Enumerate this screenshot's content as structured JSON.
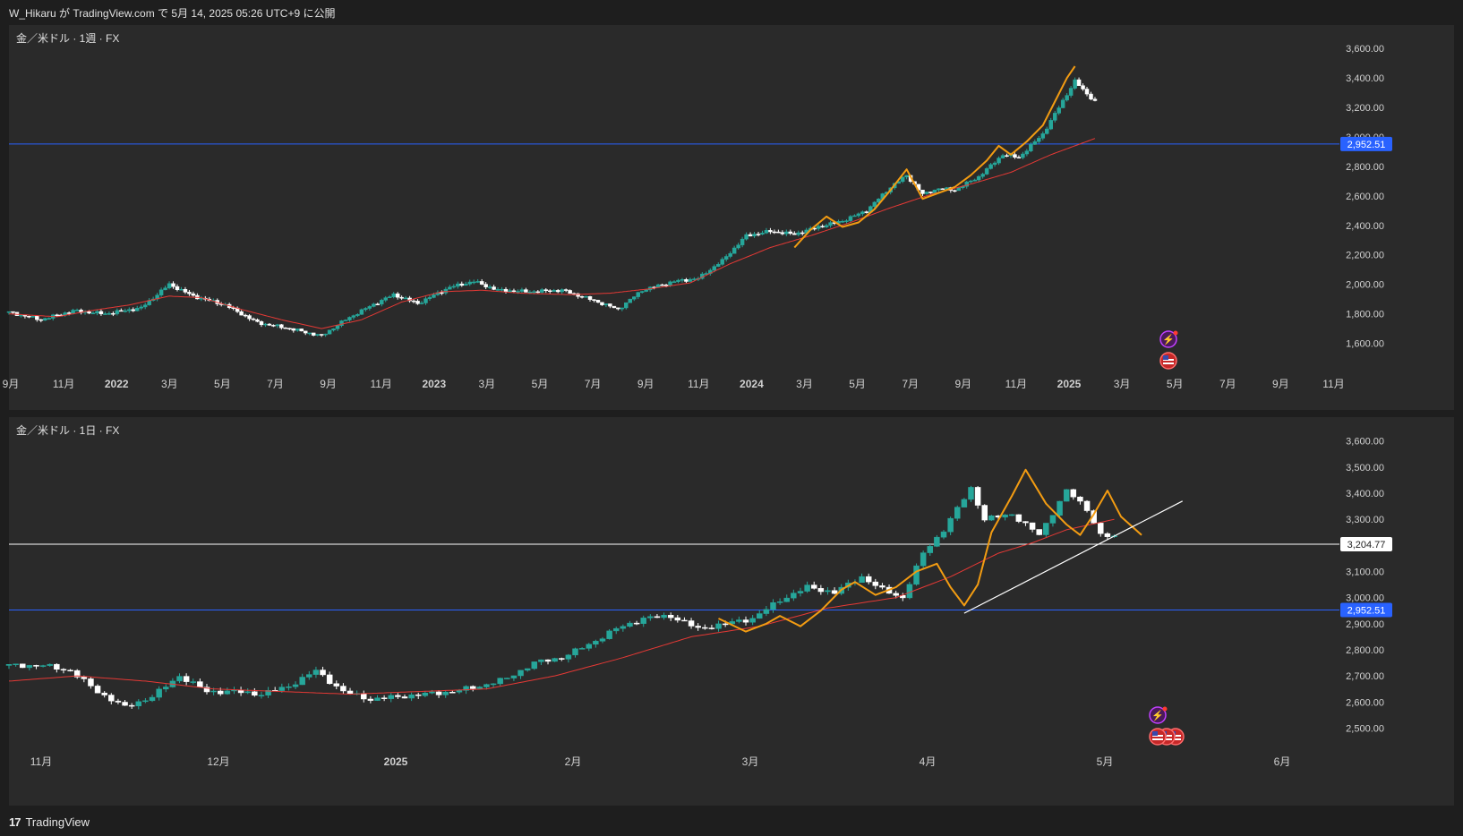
{
  "header": {
    "text": "W_Hikaru が TradingView.com で 5月 14, 2025 05:26 UTC+9 に公開"
  },
  "footer": {
    "logo": "17",
    "brand": "TradingView"
  },
  "colors": {
    "bg": "#2a2a2a",
    "up": "#26a69a",
    "down": "#ffffff",
    "ma": "#e53935",
    "pattern": "#f39c12",
    "hline_blue": "#2962ff",
    "hline_white": "#ffffff",
    "trend": "#ffffff"
  },
  "icons": [
    "lightning-icon",
    "us-flag-icon"
  ],
  "chart_data": [
    {
      "type": "candlestick",
      "title": "金／米ドル · 1週 · FX",
      "y_ticks": [
        "3,600.00",
        "3,400.00",
        "3,200.00",
        "3,000.00",
        "2,800.00",
        "2,600.00",
        "2,400.00",
        "2,200.00",
        "2,000.00",
        "1,800.00",
        "1,600.00"
      ],
      "ylim": [
        1500,
        3650
      ],
      "x_ticks": [
        "9月",
        "11月",
        "2022",
        "3月",
        "5月",
        "7月",
        "9月",
        "11月",
        "2023",
        "3月",
        "5月",
        "7月",
        "9月",
        "11月",
        "2024",
        "3月",
        "5月",
        "7月",
        "9月",
        "11月",
        "2025",
        "3月",
        "5月",
        "7月",
        "9月",
        "11月"
      ],
      "price_path": [
        [
          0,
          1810
        ],
        [
          8,
          1760
        ],
        [
          16,
          1820
        ],
        [
          24,
          1800
        ],
        [
          33,
          1840
        ],
        [
          40,
          2000
        ],
        [
          46,
          1920
        ],
        [
          54,
          1860
        ],
        [
          62,
          1740
        ],
        [
          70,
          1700
        ],
        [
          78,
          1650
        ],
        [
          84,
          1760
        ],
        [
          90,
          1850
        ],
        [
          96,
          1930
        ],
        [
          102,
          1870
        ],
        [
          110,
          1980
        ],
        [
          116,
          2020
        ],
        [
          122,
          1960
        ],
        [
          130,
          1950
        ],
        [
          138,
          1960
        ],
        [
          146,
          1890
        ],
        [
          152,
          1830
        ],
        [
          158,
          1960
        ],
        [
          166,
          2020
        ],
        [
          172,
          2040
        ],
        [
          178,
          2160
        ],
        [
          184,
          2330
        ],
        [
          190,
          2360
        ],
        [
          196,
          2340
        ],
        [
          202,
          2390
        ],
        [
          208,
          2430
        ],
        [
          214,
          2500
        ],
        [
          220,
          2660
        ],
        [
          224,
          2740
        ],
        [
          228,
          2610
        ],
        [
          232,
          2650
        ],
        [
          236,
          2640
        ],
        [
          242,
          2730
        ],
        [
          248,
          2880
        ],
        [
          252,
          2860
        ],
        [
          258,
          3020
        ],
        [
          262,
          3200
        ],
        [
          266,
          3380
        ],
        [
          268,
          3320
        ],
        [
          271,
          3240
        ]
      ],
      "ma_path": [
        [
          0,
          1800
        ],
        [
          12,
          1780
        ],
        [
          20,
          1820
        ],
        [
          30,
          1860
        ],
        [
          40,
          1920
        ],
        [
          48,
          1910
        ],
        [
          58,
          1830
        ],
        [
          68,
          1760
        ],
        [
          78,
          1700
        ],
        [
          88,
          1760
        ],
        [
          98,
          1880
        ],
        [
          108,
          1950
        ],
        [
          118,
          1960
        ],
        [
          128,
          1940
        ],
        [
          140,
          1930
        ],
        [
          150,
          1940
        ],
        [
          160,
          1970
        ],
        [
          170,
          2010
        ],
        [
          180,
          2140
        ],
        [
          190,
          2250
        ],
        [
          200,
          2330
        ],
        [
          210,
          2420
        ],
        [
          220,
          2520
        ],
        [
          230,
          2610
        ],
        [
          240,
          2680
        ],
        [
          250,
          2760
        ],
        [
          260,
          2880
        ],
        [
          271,
          2990
        ]
      ],
      "pattern_path": [
        [
          196,
          2250
        ],
        [
          200,
          2370
        ],
        [
          204,
          2460
        ],
        [
          208,
          2390
        ],
        [
          212,
          2420
        ],
        [
          216,
          2510
        ],
        [
          220,
          2640
        ],
        [
          224,
          2780
        ],
        [
          228,
          2580
        ],
        [
          232,
          2620
        ],
        [
          236,
          2660
        ],
        [
          240,
          2740
        ],
        [
          244,
          2840
        ],
        [
          247,
          2940
        ],
        [
          250,
          2880
        ],
        [
          254,
          2970
        ],
        [
          258,
          3080
        ],
        [
          261,
          3240
        ],
        [
          264,
          3400
        ],
        [
          266,
          3480
        ]
      ],
      "hline": {
        "value": 2952.51,
        "label": "2,952.51"
      },
      "x_range": [
        0,
        332
      ]
    },
    {
      "type": "candlestick",
      "title": "金／米ドル · 1日 · FX",
      "y_ticks": [
        "3,600.00",
        "3,500.00",
        "3,400.00",
        "3,300.00",
        "3,200.00",
        "3,100.00",
        "3,000.00",
        "2,900.00",
        "2,800.00",
        "2,700.00",
        "2,600.00",
        "2,500.00"
      ],
      "ylim": [
        2450,
        3630
      ],
      "x_ticks": [
        "11月",
        "12月",
        "2025",
        "2月",
        "3月",
        "4月",
        "5月",
        "6月"
      ],
      "price_path": [
        [
          0,
          2740
        ],
        [
          5,
          2740
        ],
        [
          9,
          2720
        ],
        [
          13,
          2640
        ],
        [
          17,
          2580
        ],
        [
          21,
          2620
        ],
        [
          25,
          2700
        ],
        [
          29,
          2640
        ],
        [
          33,
          2640
        ],
        [
          37,
          2630
        ],
        [
          41,
          2660
        ],
        [
          45,
          2720
        ],
        [
          49,
          2640
        ],
        [
          53,
          2610
        ],
        [
          57,
          2620
        ],
        [
          61,
          2630
        ],
        [
          65,
          2640
        ],
        [
          69,
          2660
        ],
        [
          73,
          2690
        ],
        [
          77,
          2750
        ],
        [
          81,
          2770
        ],
        [
          85,
          2820
        ],
        [
          89,
          2880
        ],
        [
          93,
          2920
        ],
        [
          97,
          2930
        ],
        [
          101,
          2880
        ],
        [
          105,
          2900
        ],
        [
          109,
          2920
        ],
        [
          113,
          2990
        ],
        [
          117,
          3040
        ],
        [
          121,
          3020
        ],
        [
          125,
          3080
        ],
        [
          128,
          3030
        ],
        [
          131,
          3000
        ],
        [
          134,
          3170
        ],
        [
          137,
          3260
        ],
        [
          141,
          3420
        ],
        [
          143,
          3300
        ],
        [
          147,
          3320
        ],
        [
          151,
          3240
        ],
        [
          155,
          3410
        ],
        [
          158,
          3340
        ],
        [
          160,
          3240
        ],
        [
          162,
          3230
        ]
      ],
      "ma_path": [
        [
          0,
          2680
        ],
        [
          10,
          2700
        ],
        [
          20,
          2680
        ],
        [
          30,
          2650
        ],
        [
          40,
          2640
        ],
        [
          50,
          2630
        ],
        [
          60,
          2640
        ],
        [
          70,
          2650
        ],
        [
          80,
          2700
        ],
        [
          90,
          2770
        ],
        [
          100,
          2850
        ],
        [
          110,
          2890
        ],
        [
          120,
          2960
        ],
        [
          130,
          3000
        ],
        [
          138,
          3080
        ],
        [
          145,
          3170
        ],
        [
          150,
          3210
        ],
        [
          155,
          3260
        ],
        [
          162,
          3300
        ]
      ],
      "pattern_path": [
        [
          104,
          2920
        ],
        [
          108,
          2870
        ],
        [
          111,
          2900
        ],
        [
          113,
          2930
        ],
        [
          116,
          2890
        ],
        [
          119,
          2950
        ],
        [
          122,
          3030
        ],
        [
          124,
          3060
        ],
        [
          127,
          3010
        ],
        [
          130,
          3040
        ],
        [
          133,
          3100
        ],
        [
          136,
          3130
        ],
        [
          138,
          3040
        ],
        [
          140,
          2970
        ],
        [
          142,
          3050
        ],
        [
          144,
          3250
        ],
        [
          147,
          3390
        ],
        [
          149,
          3490
        ],
        [
          152,
          3360
        ],
        [
          155,
          3280
        ],
        [
          157,
          3240
        ],
        [
          159,
          3320
        ],
        [
          161,
          3410
        ],
        [
          163,
          3310
        ],
        [
          166,
          3240
        ]
      ],
      "trendline": [
        [
          140,
          2940
        ],
        [
          172,
          3370
        ]
      ],
      "hline_blue": {
        "value": 2952.51,
        "label": "2,952.51"
      },
      "hline_white": {
        "value": 3204.77,
        "label": "3,204.77"
      },
      "x_range": [
        0,
        195
      ]
    }
  ]
}
